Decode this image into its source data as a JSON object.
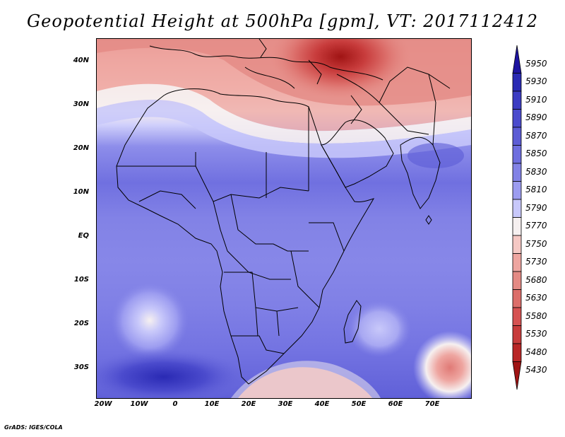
{
  "title": "Geopotential Height at 500hPa [gpm], VT: 2017112412",
  "credit": "GrADS: IGES/COLA",
  "lat_labels": [
    "40N",
    "30N",
    "20N",
    "10N",
    "EQ",
    "10S",
    "20S",
    "30S"
  ],
  "lon_labels": [
    "20W",
    "10W",
    "0",
    "10E",
    "20E",
    "30E",
    "40E",
    "50E",
    "60E",
    "70E"
  ],
  "colorbar": {
    "levels": [
      "5950",
      "5930",
      "5910",
      "5890",
      "5870",
      "5850",
      "5830",
      "5810",
      "5790",
      "5770",
      "5750",
      "5730",
      "5680",
      "5630",
      "5580",
      "5530",
      "5480",
      "5430"
    ],
    "colors": [
      "#1e14a0",
      "#2a2ab4",
      "#3c3cc3",
      "#4b4bcd",
      "#5c5cd5",
      "#6e6edf",
      "#8282e6",
      "#9c9cf0",
      "#c8c8fa",
      "#f6f0f0",
      "#f5c8c4",
      "#eea5a0",
      "#e48a84",
      "#dc6e6a",
      "#d65252",
      "#c83c3c",
      "#b92626",
      "#a01414"
    ]
  },
  "map": {
    "projection": "lat-lon",
    "lon_range": [
      -25,
      80
    ],
    "lat_range": [
      -37,
      45
    ],
    "field": "geopotential height 500hPa"
  }
}
